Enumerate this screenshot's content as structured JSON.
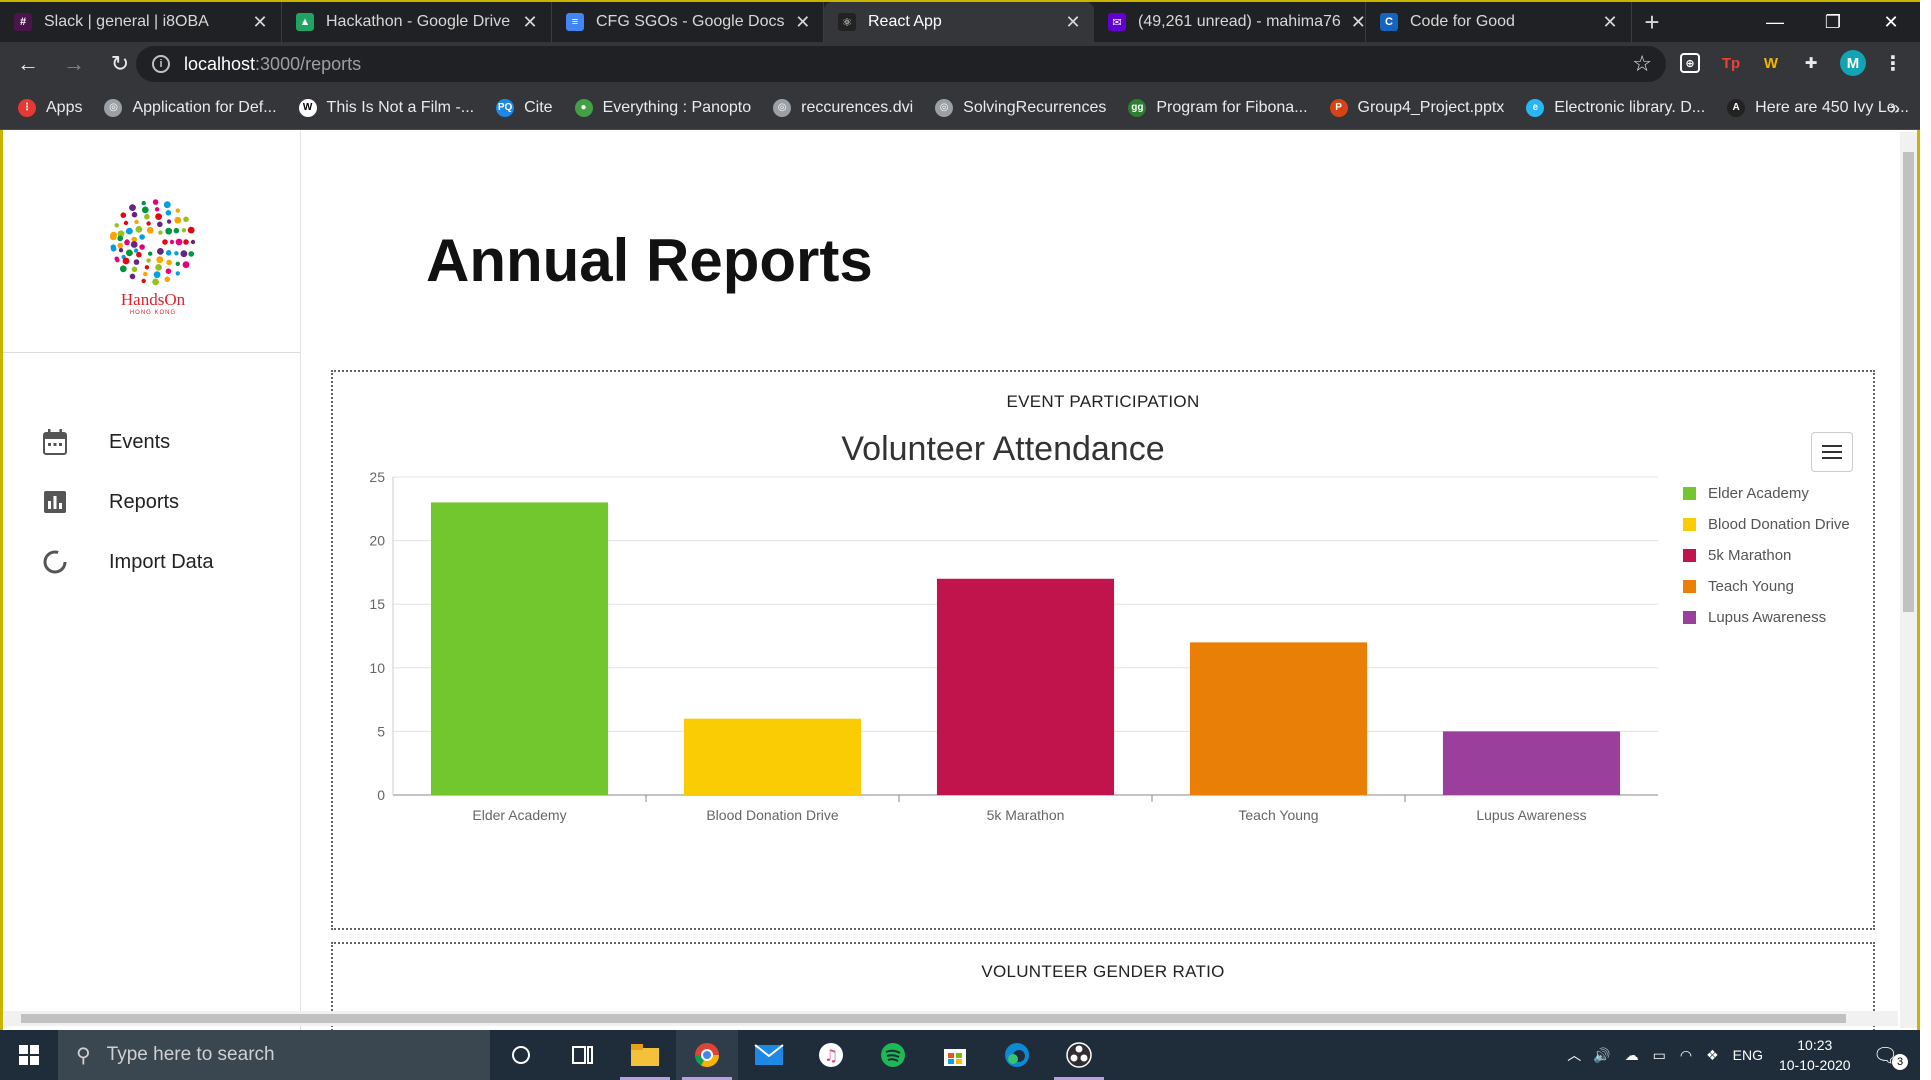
{
  "browser": {
    "tabs": [
      {
        "title": "Slack | general | i8OBA",
        "color": "#4a154b",
        "glyph": "#",
        "active": false
      },
      {
        "title": "Hackathon - Google Drive",
        "color": "#1fa463",
        "glyph": "▲",
        "active": false
      },
      {
        "title": "CFG SGOs - Google Docs",
        "color": "#4285f4",
        "glyph": "≡",
        "active": false
      },
      {
        "title": "React App",
        "color": "#222",
        "glyph": "⚛",
        "active": true
      },
      {
        "title": "(49,261 unread) - mahima76",
        "color": "#6001d2",
        "glyph": "✉",
        "active": false
      },
      {
        "title": "Code for Good",
        "color": "#1565c0",
        "glyph": "C",
        "active": false
      }
    ],
    "url_host": "localhost",
    "url_path": ":3000/reports",
    "bookmarks": [
      {
        "label": "Apps",
        "color": "#e53935",
        "glyph": "⋮"
      },
      {
        "label": "Application for Def...",
        "color": "#9aa0a6",
        "glyph": "◎"
      },
      {
        "label": "This Is Not a Film -...",
        "color": "#ffffff",
        "glyph": "W"
      },
      {
        "label": "Cite",
        "color": "#1e88e5",
        "glyph": "PQ"
      },
      {
        "label": "Everything : Panopto",
        "color": "#43a047",
        "glyph": "●"
      },
      {
        "label": "reccurences.dvi",
        "color": "#9aa0a6",
        "glyph": "◎"
      },
      {
        "label": "SolvingRecurrences",
        "color": "#9aa0a6",
        "glyph": "◎"
      },
      {
        "label": "Program for Fibona...",
        "color": "#2e7d32",
        "glyph": "gg"
      },
      {
        "label": "Group4_Project.pptx",
        "color": "#d84315",
        "glyph": "P"
      },
      {
        "label": "Electronic library. D...",
        "color": "#29b6f6",
        "glyph": "e"
      },
      {
        "label": "Here are 450 Ivy Le...",
        "color": "#222",
        "glyph": "A"
      }
    ],
    "profile_initial": "M"
  },
  "sidebar": {
    "logo_text": "HandsOn",
    "logo_sub": "HONG KONG",
    "items": [
      {
        "label": "Events",
        "icon": "calendar-icon"
      },
      {
        "label": "Reports",
        "icon": "bar-chart-icon"
      },
      {
        "label": "Import Data",
        "icon": "loading-circle-icon"
      }
    ]
  },
  "main": {
    "page_title": "Annual Reports",
    "cards": [
      {
        "title": "EVENT PARTICIPATION"
      },
      {
        "title": "VOLUNTEER GENDER RATIO"
      }
    ]
  },
  "chart_data": {
    "type": "bar",
    "title": "Volunteer Attendance",
    "categories": [
      "Elder Academy",
      "Blood Donation Drive",
      "5k Marathon",
      "Teach Young",
      "Lupus Awareness"
    ],
    "values": [
      23,
      6,
      17,
      12,
      5
    ],
    "colors": [
      "#72c72e",
      "#f9cc03",
      "#c2144c",
      "#ea7f07",
      "#9b3f9c"
    ],
    "ylim": [
      0,
      25
    ],
    "yticks": [
      0,
      5,
      10,
      15,
      20,
      25
    ],
    "xlabel": "",
    "ylabel": "",
    "grid": true,
    "legend": "right"
  },
  "taskbar": {
    "search_placeholder": "Type here to search",
    "language": "ENG",
    "time": "10:23",
    "date": "10-10-2020",
    "notifications": "3"
  }
}
